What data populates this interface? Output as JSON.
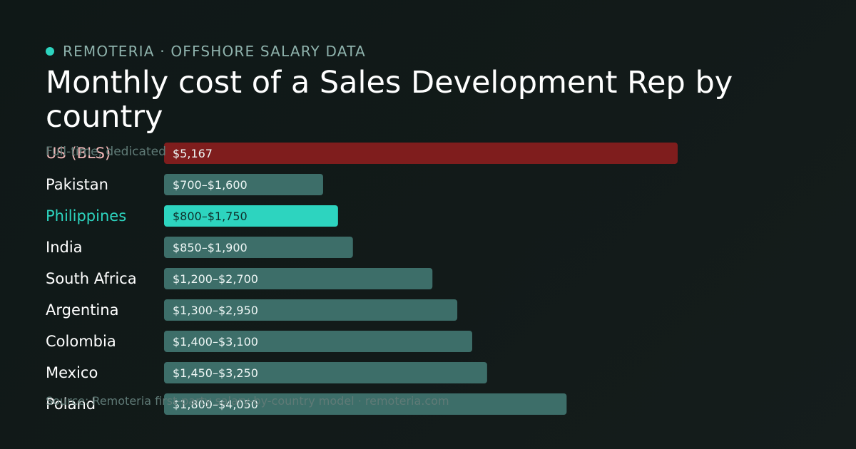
{
  "brand": {
    "label": "REMOTERIA · OFFSHORE SALARY DATA",
    "accent": "#2dd4bf"
  },
  "chart_data": {
    "type": "bar",
    "title": "Monthly cost of a Sales Development Rep by country",
    "subtitle": "Full-time, dedicated",
    "source": "Source: Remoteria first-party salary-by-country model · remoteria.com",
    "categories": [
      "US (BLS)",
      "Pakistan",
      "Philippines",
      "India",
      "South Africa",
      "Argentina",
      "Colombia",
      "Mexico",
      "Poland"
    ],
    "series": [
      {
        "values": [
          5167,
          1600,
          1750,
          1900,
          2700,
          2950,
          3100,
          3250,
          4050
        ],
        "low": [
          5167,
          700,
          800,
          850,
          1200,
          1300,
          1400,
          1450,
          1800
        ],
        "labels": [
          "$5,167",
          "$700–$1,600",
          "$800–$1,750",
          "$850–$1,900",
          "$1,200–$2,700",
          "$1,300–$2,950",
          "$1,400–$3,100",
          "$1,450–$3,250",
          "$1,800–$4,050"
        ]
      }
    ],
    "xlim": [
      0,
      5167
    ],
    "highlight": {
      "US (BLS)": "#7f1d1d",
      "Philippines": "#2dd4bf"
    },
    "colors": {
      "bar_default": "#3d6e69",
      "label_default": "#ffffff",
      "label_us": "#f2b8b8",
      "label_ph": "#2dd4bf",
      "value_default": "#eef6f5",
      "value_ph": "#0f2f2b"
    }
  }
}
